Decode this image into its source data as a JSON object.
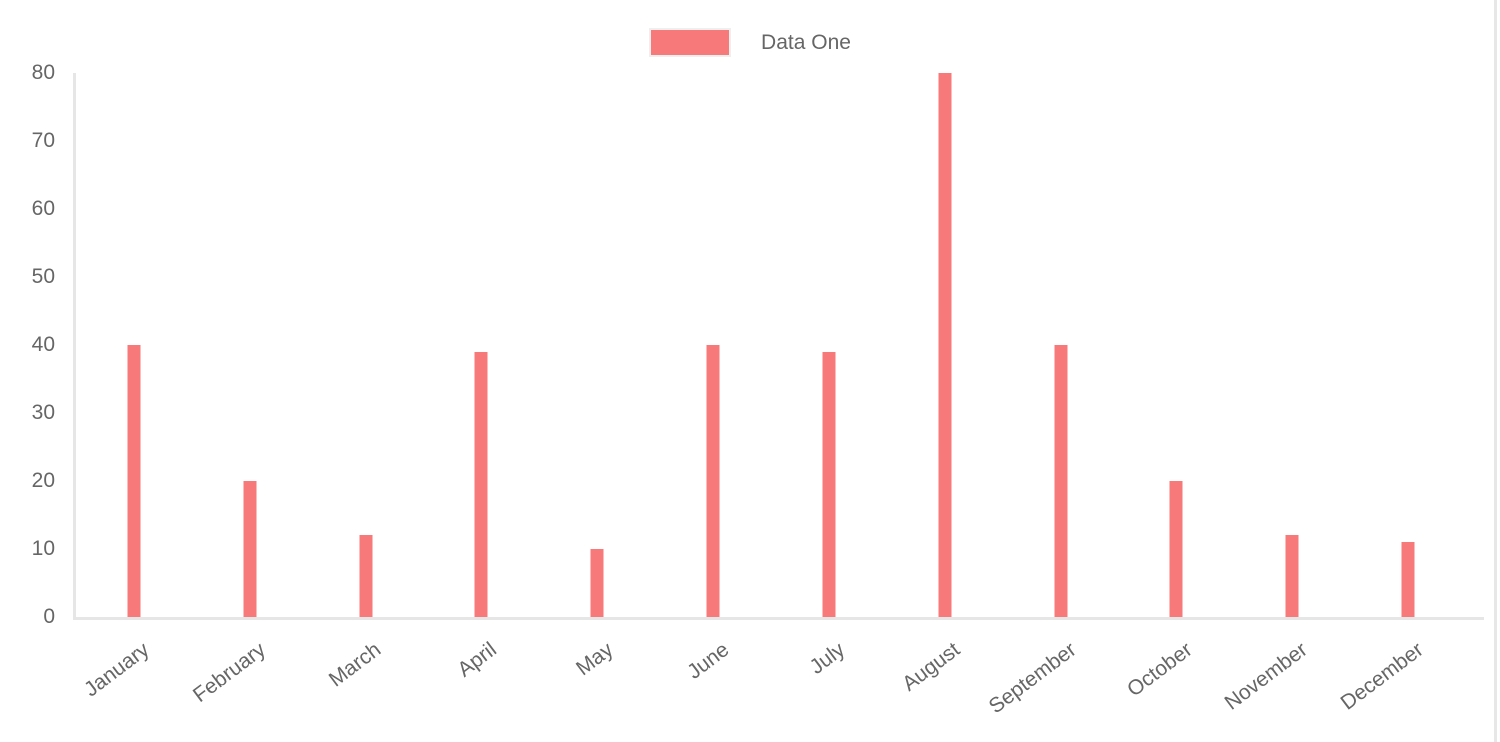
{
  "legend": {
    "label": "Data One",
    "swatch_color": "#f87979"
  },
  "colors": {
    "bar": "#f87979",
    "axis_line": "#e6e6e6",
    "tick_text": "#666666",
    "legend_text": "#666666",
    "right_edge_line": "#e7e7e7"
  },
  "chart_data": {
    "type": "bar",
    "title": "",
    "xlabel": "",
    "ylabel": "",
    "categories": [
      "January",
      "February",
      "March",
      "April",
      "May",
      "June",
      "July",
      "August",
      "September",
      "October",
      "November",
      "December"
    ],
    "series": [
      {
        "name": "Data One",
        "color": "#f87979",
        "values": [
          40,
          20,
          12,
          39,
          10,
          40,
          39,
          80,
          40,
          20,
          12,
          11
        ]
      }
    ],
    "ylim": [
      0,
      80
    ],
    "yticks": [
      0,
      10,
      20,
      30,
      40,
      50,
      60,
      70,
      80
    ],
    "grid": false,
    "legend_position": "top-center",
    "x_tick_rotation_deg": -37
  }
}
